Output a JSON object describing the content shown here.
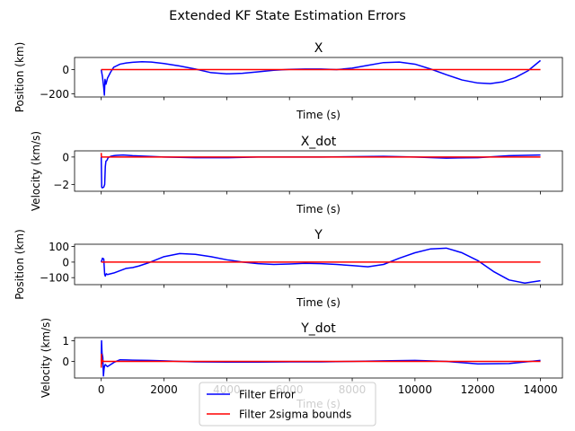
{
  "figure": {
    "suptitle": "Extended KF State Estimation Errors",
    "legend": {
      "placement": "bottom-center (overlapping last subplot)",
      "entries": [
        {
          "label": "Filter Error",
          "color": "#0000ff"
        },
        {
          "label": "Filter 2sigma bounds",
          "color": "#ff0000"
        }
      ]
    }
  },
  "chart_data": [
    {
      "type": "line",
      "title": "X",
      "xlabel": "Time (s)",
      "ylabel": "Position (km)",
      "xlim": [
        -850,
        14700
      ],
      "ylim": [
        -225,
        100
      ],
      "yticks": [
        -200,
        0
      ],
      "ytick_labels": [
        "−200",
        "0"
      ],
      "xticks": [
        0,
        2000,
        4000,
        6000,
        8000,
        10000,
        12000,
        14000
      ],
      "show_xtick_labels": false,
      "grid": false,
      "series": [
        {
          "name": "Filter Error",
          "color": "#0000ff",
          "x": [
            0,
            40,
            80,
            100,
            120,
            150,
            200,
            300,
            400,
            600,
            800,
            1000,
            1300,
            1600,
            2000,
            2500,
            3000,
            3500,
            4000,
            4500,
            5000,
            5500,
            6000,
            6500,
            7000,
            7500,
            8000,
            8500,
            9000,
            9500,
            10000,
            10500,
            11000,
            11500,
            12000,
            12400,
            12800,
            13200,
            13600,
            14000
          ],
          "y": [
            0,
            -60,
            -150,
            -210,
            -80,
            -120,
            -70,
            -20,
            20,
            45,
            55,
            60,
            65,
            62,
            50,
            30,
            5,
            -25,
            -35,
            -30,
            -18,
            -5,
            2,
            5,
            5,
            0,
            12,
            35,
            58,
            62,
            45,
            5,
            -42,
            -85,
            -110,
            -115,
            -100,
            -65,
            -10,
            75
          ]
        },
        {
          "name": "Filter 2sigma bounds",
          "color": "#ff0000",
          "x": [
            0,
            14000
          ],
          "y": [
            0,
            0
          ]
        }
      ]
    },
    {
      "type": "line",
      "title": "X_dot",
      "xlabel": "Time (s)",
      "ylabel": "Velocity (km/s)",
      "xlim": [
        -850,
        14700
      ],
      "ylim": [
        -2.5,
        0.45
      ],
      "yticks": [
        -2,
        0
      ],
      "ytick_labels": [
        "−2",
        "0"
      ],
      "xticks": [
        0,
        2000,
        4000,
        6000,
        8000,
        10000,
        12000,
        14000
      ],
      "show_xtick_labels": false,
      "grid": false,
      "series": [
        {
          "name": "Filter Error",
          "color": "#0000ff",
          "x": [
            0,
            15,
            30,
            80,
            110,
            130,
            150,
            180,
            220,
            300,
            400,
            500,
            700,
            1000,
            2000,
            3000,
            4000,
            5000,
            6000,
            7000,
            8000,
            9000,
            10000,
            11000,
            12000,
            13000,
            14000
          ],
          "y": [
            0,
            -2.2,
            -2.25,
            -2.2,
            -2.0,
            -0.7,
            -0.3,
            -0.25,
            -0.05,
            0.05,
            0.1,
            0.12,
            0.15,
            0.1,
            0.0,
            -0.05,
            -0.05,
            0.0,
            0.0,
            0.0,
            0.02,
            0.05,
            0.0,
            -0.08,
            -0.05,
            0.1,
            0.15
          ]
        },
        {
          "name": "Filter 2sigma bounds",
          "color": "#ff0000",
          "x": [
            0,
            5,
            10,
            14000
          ],
          "y": [
            0.3,
            0.05,
            0,
            0
          ]
        }
      ]
    },
    {
      "type": "line",
      "title": "Y",
      "xlabel": "Time (s)",
      "ylabel": "Position (km)",
      "xlim": [
        -850,
        14700
      ],
      "ylim": [
        -145,
        115
      ],
      "yticks": [
        -100,
        0,
        100
      ],
      "ytick_labels": [
        "−100",
        "0",
        "100"
      ],
      "xticks": [
        0,
        2000,
        4000,
        6000,
        8000,
        10000,
        12000,
        14000
      ],
      "show_xtick_labels": false,
      "grid": false,
      "series": [
        {
          "name": "Filter Error",
          "color": "#0000ff",
          "x": [
            0,
            40,
            80,
            110,
            130,
            160,
            200,
            300,
            400,
            600,
            800,
            1000,
            1200,
            1500,
            2000,
            2500,
            3000,
            3500,
            4000,
            4500,
            5000,
            5500,
            6000,
            6500,
            7000,
            7500,
            8000,
            8500,
            9000,
            9500,
            10000,
            10500,
            11000,
            11500,
            12000,
            12500,
            13000,
            13500,
            14000
          ],
          "y": [
            0,
            25,
            20,
            -80,
            -90,
            -75,
            -80,
            -75,
            -70,
            -55,
            -40,
            -35,
            -25,
            -5,
            35,
            55,
            50,
            35,
            15,
            0,
            -10,
            -15,
            -12,
            -8,
            -10,
            -15,
            -22,
            -30,
            -15,
            25,
            60,
            85,
            90,
            60,
            10,
            -60,
            -115,
            -135,
            -120
          ]
        },
        {
          "name": "Filter 2sigma bounds",
          "color": "#ff0000",
          "x": [
            0,
            14000
          ],
          "y": [
            0,
            0
          ]
        }
      ]
    },
    {
      "type": "line",
      "title": "Y_dot",
      "xlabel": "Time (s)",
      "ylabel": "Velocity (km/s)",
      "xlim": [
        -850,
        14700
      ],
      "ylim": [
        -0.8,
        1.15
      ],
      "yticks": [
        -1,
        0,
        1
      ],
      "yticks_drawn": [
        0,
        1
      ],
      "ytick_labels": [
        "0",
        "1"
      ],
      "xticks": [
        0,
        2000,
        4000,
        6000,
        8000,
        10000,
        12000,
        14000
      ],
      "xtick_labels": [
        "0",
        "2000",
        "4000",
        "6000",
        "8000",
        "10000",
        "12000",
        "14000"
      ],
      "show_xtick_labels": true,
      "grid": false,
      "series": [
        {
          "name": "Filter Error",
          "color": "#0000ff",
          "x": [
            0,
            10,
            25,
            50,
            70,
            90,
            110,
            130,
            160,
            200,
            300,
            400,
            500,
            600,
            800,
            1000,
            1500,
            2000,
            2500,
            3000,
            4000,
            5000,
            6000,
            7000,
            8000,
            9000,
            10000,
            11000,
            12000,
            13000,
            14000
          ],
          "y": [
            0,
            1.0,
            0.4,
            0.2,
            -0.7,
            -0.35,
            -0.2,
            -0.15,
            -0.2,
            -0.25,
            -0.15,
            -0.05,
            0.02,
            0.08,
            0.07,
            0.06,
            0.05,
            0.03,
            0.0,
            -0.02,
            -0.03,
            -0.03,
            -0.02,
            -0.02,
            0.0,
            0.03,
            0.05,
            0.0,
            -0.12,
            -0.1,
            0.05
          ]
        },
        {
          "name": "Filter 2sigma bounds",
          "color": "#ff0000",
          "x": [
            0,
            8,
            15,
            40,
            80,
            14000
          ],
          "y": [
            -0.3,
            0.35,
            -0.1,
            0.05,
            0,
            0
          ]
        }
      ]
    }
  ]
}
